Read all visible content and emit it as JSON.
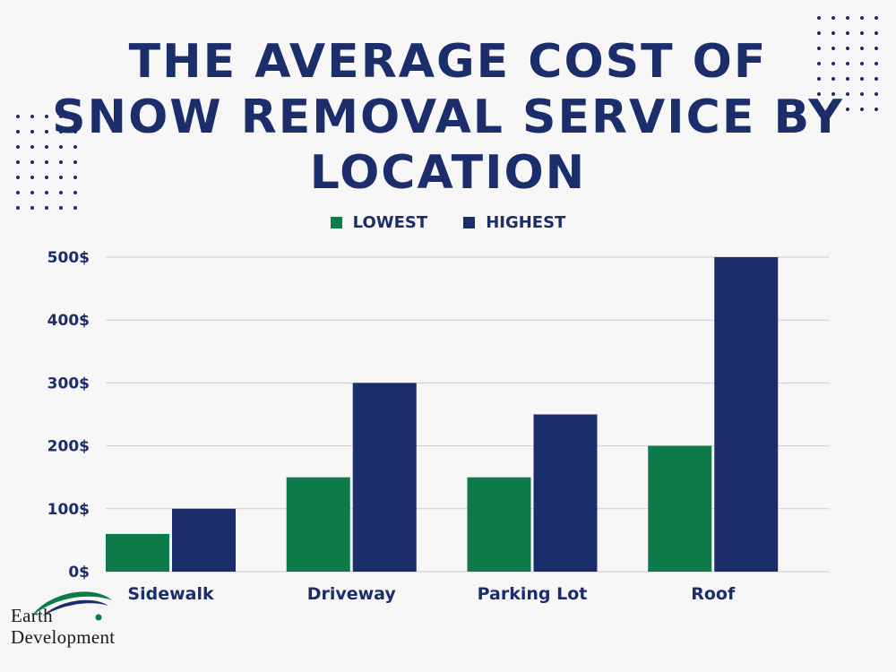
{
  "title_lines": [
    "THE AVERAGE COST OF",
    "SNOW REMOVAL SERVICE BY",
    "LOCATION"
  ],
  "legend": [
    {
      "label": "LOWEST",
      "color": "#0e7a4a"
    },
    {
      "label": "HIGHEST",
      "color": "#1b2d6b"
    }
  ],
  "colors": {
    "text": "#1b2d6b",
    "grid": "#c9cbd6",
    "background": "#f7f7f8"
  },
  "chart_data": {
    "type": "bar",
    "title": "THE AVERAGE COST OF SNOW REMOVAL SERVICE BY LOCATION",
    "categories": [
      "Sidewalk",
      "Driveway",
      "Parking Lot",
      "Roof"
    ],
    "series": [
      {
        "name": "LOWEST",
        "values": [
          60,
          150,
          150,
          200
        ]
      },
      {
        "name": "HIGHEST",
        "values": [
          100,
          300,
          250,
          500
        ]
      }
    ],
    "ylim": [
      0,
      500
    ],
    "yticks": [
      "0$",
      "100$",
      "200$",
      "300$",
      "400$",
      "500$"
    ],
    "xlabel": "",
    "ylabel": "",
    "grid": true,
    "legend_position": "top-center"
  },
  "logo": {
    "line1": "Earth",
    "line2": "Development"
  }
}
